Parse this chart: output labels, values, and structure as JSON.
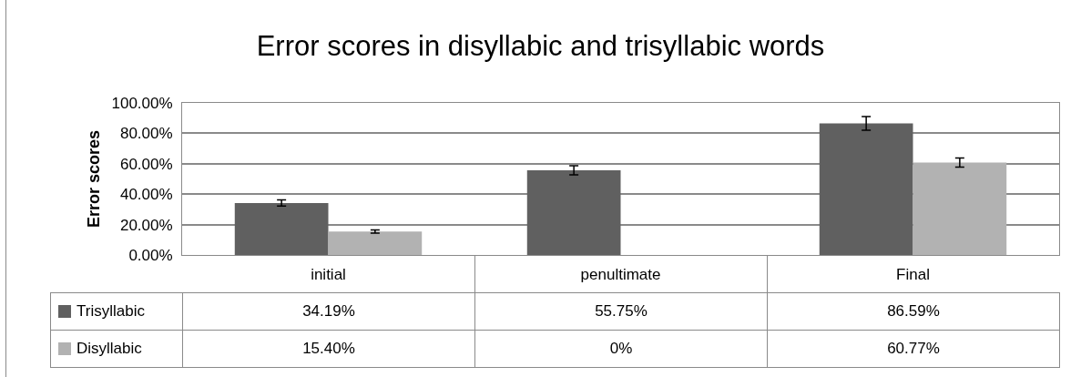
{
  "chart_data": {
    "type": "bar",
    "title": "Error scores in disyllabic and trisyllabic words",
    "ylabel": "Error scores",
    "categories": [
      "initial",
      "penultimate",
      "Final"
    ],
    "series": [
      {
        "name": "Trisyllabic",
        "color": "#606060",
        "values": [
          34.19,
          55.75,
          86.59
        ],
        "errors": [
          2,
          3,
          4.5
        ],
        "value_labels": [
          "34.19%",
          "55.75%",
          "86.59%"
        ]
      },
      {
        "name": "Disyllabic",
        "color": "#b2b2b2",
        "values": [
          15.4,
          0,
          60.77
        ],
        "errors": [
          1,
          null,
          3
        ],
        "value_labels": [
          "15.40%",
          "0%",
          "60.77%"
        ]
      }
    ],
    "ylim": [
      0,
      100
    ],
    "yticks": [
      {
        "value": 0,
        "label": "0.00%"
      },
      {
        "value": 20,
        "label": "20.00%"
      },
      {
        "value": 40,
        "label": "40.00%"
      },
      {
        "value": 60,
        "label": "60.00%"
      },
      {
        "value": 80,
        "label": "80.00%"
      },
      {
        "value": 100,
        "label": "100.00%"
      }
    ],
    "grid": "y",
    "legend": "bottom"
  }
}
